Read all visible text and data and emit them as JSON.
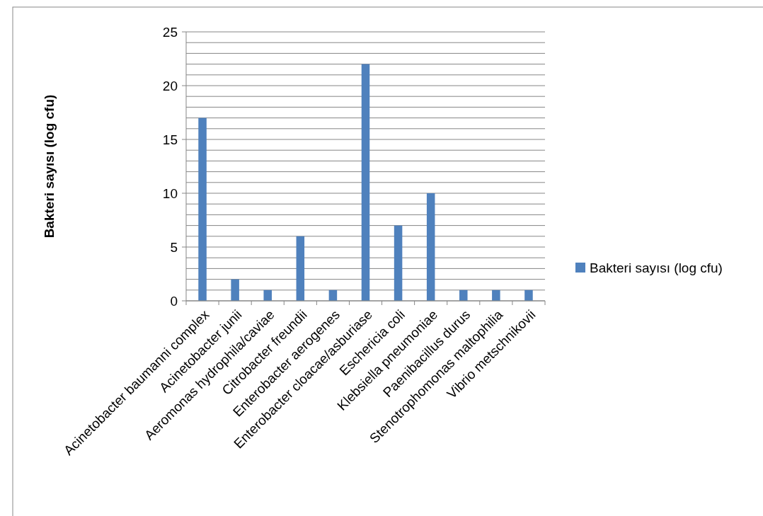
{
  "chart_data": {
    "type": "bar",
    "ylabel": "Bakteri sayısı (log cfu)",
    "categories": [
      "Acinetobacter baumanni complex",
      "Acinetobacter junii",
      "Aeromonas hydrophila/caviae",
      "Citrobacter freundii",
      "Enterobacter aerogenes",
      "Enterobacter cloacae/asburiase",
      "Eschericia coli",
      "Klebsiella pneumoniae",
      "Paenibacillus durus",
      "Stenotrophomonas maltophilia",
      "Vibrio metschnikovii"
    ],
    "series": [
      {
        "name": "Bakteri sayısı (log cfu)",
        "color": "#4f81bd",
        "values": [
          17,
          2,
          1,
          6,
          1,
          22,
          7,
          10,
          1,
          1,
          1
        ]
      }
    ],
    "ylim": [
      0,
      25
    ],
    "yticks": [
      0,
      {
        "value": 1,
        "label": null
      },
      {
        "value": 2,
        "label": null
      },
      {
        "value": 3,
        "label": null
      },
      {
        "value": 4,
        "label": null
      },
      5,
      {
        "value": 6,
        "label": null
      },
      {
        "value": 7,
        "label": null
      },
      {
        "value": 8,
        "label": null
      },
      {
        "value": 9,
        "label": null
      },
      10,
      {
        "value": 11,
        "label": null
      },
      {
        "value": 12,
        "label": null
      },
      {
        "value": 13,
        "label": null
      },
      {
        "value": 14,
        "label": null
      },
      15,
      {
        "value": 16,
        "label": null
      },
      {
        "value": 17,
        "label": null
      },
      {
        "value": 18,
        "label": null
      },
      {
        "value": 19,
        "label": null
      },
      20,
      {
        "value": 21,
        "label": null
      },
      {
        "value": 22,
        "label": null
      },
      {
        "value": 23,
        "label": null
      },
      {
        "value": 24,
        "label": null
      },
      25
    ],
    "grid": "y",
    "legend": "right"
  }
}
